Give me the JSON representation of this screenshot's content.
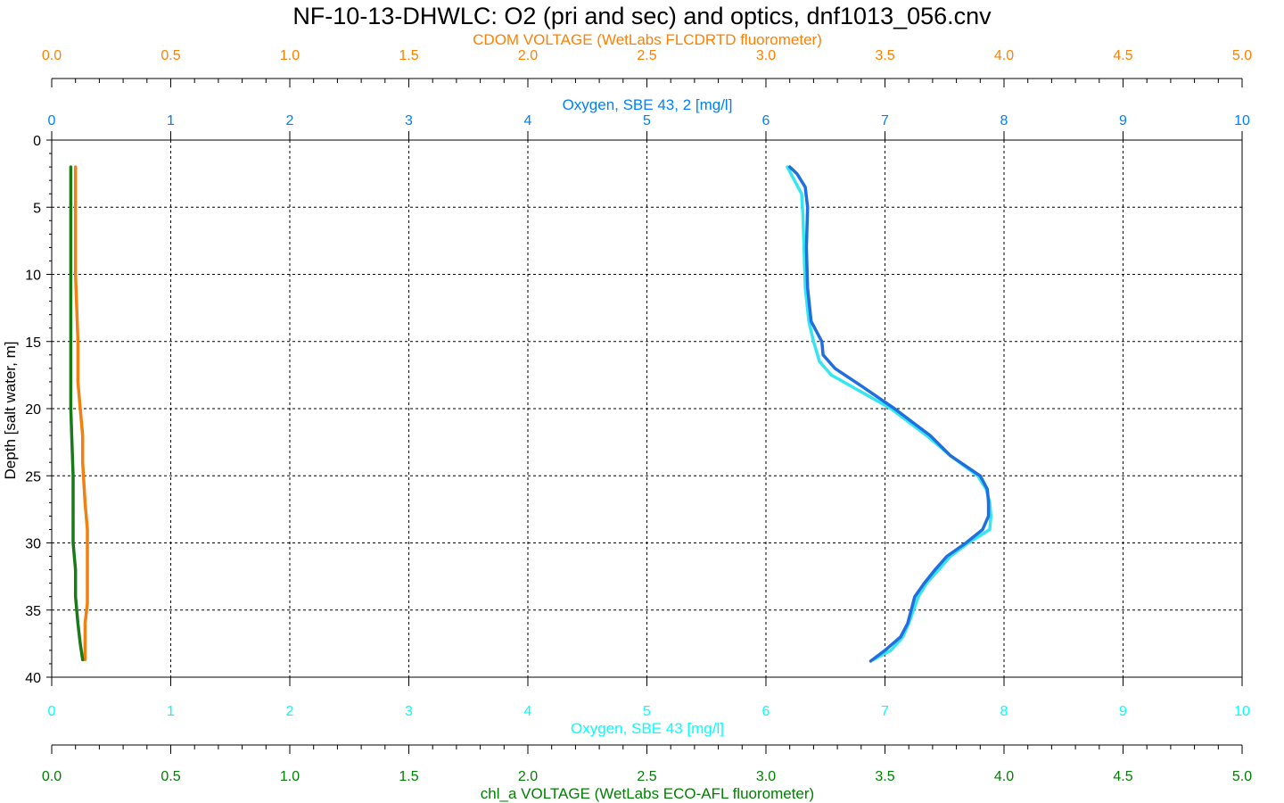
{
  "chart_data": {
    "type": "line",
    "title": "NF-10-13-DHWLC: O2 (pri and sec) and optics, dnf1013_056.cnv",
    "ylabel": "Depth [salt water, m]",
    "ylim": [
      0,
      40
    ],
    "y_inverted": true,
    "y_ticks": [
      "0",
      "5",
      "10",
      "15",
      "20",
      "25",
      "30",
      "35",
      "40"
    ],
    "grid": true,
    "axes": {
      "cdom": {
        "label": "CDOM VOLTAGE (WetLabs FLCDRTD fluorometer)",
        "position": "top-outer",
        "range": [
          0,
          5
        ],
        "ticks": [
          "0.0",
          "0.5",
          "1.0",
          "1.5",
          "2.0",
          "2.5",
          "3.0",
          "3.5",
          "4.0",
          "4.5",
          "5.0"
        ],
        "color": "#ff8000"
      },
      "oxy2": {
        "label": "Oxygen, SBE 43, 2 [mg/l]",
        "position": "top-inner",
        "range": [
          0,
          10
        ],
        "ticks": [
          "0",
          "1",
          "2",
          "3",
          "4",
          "5",
          "6",
          "7",
          "8",
          "9",
          "10"
        ],
        "color": "#0080ff"
      },
      "oxy1": {
        "label": "Oxygen, SBE 43 [mg/l]",
        "position": "bottom-inner",
        "range": [
          0,
          10
        ],
        "ticks": [
          "0",
          "1",
          "2",
          "3",
          "4",
          "5",
          "6",
          "7",
          "8",
          "9",
          "10"
        ],
        "color": "#00ffff"
      },
      "chl": {
        "label": "chl_a VOLTAGE (WetLabs ECO-AFL fluorometer)",
        "position": "bottom-outer",
        "range": [
          0,
          5
        ],
        "ticks": [
          "0.0",
          "0.5",
          "1.0",
          "1.5",
          "2.0",
          "2.5",
          "3.0",
          "3.5",
          "4.0",
          "4.5",
          "5.0"
        ],
        "color": "#008000"
      }
    },
    "series": [
      {
        "axis": "oxy1",
        "color": "#33e6f0",
        "points": [
          [
            6.18,
            2.0
          ],
          [
            6.24,
            3.0
          ],
          [
            6.3,
            4.0
          ],
          [
            6.31,
            5.5
          ],
          [
            6.32,
            8.0
          ],
          [
            6.33,
            11.0
          ],
          [
            6.36,
            13.5
          ],
          [
            6.4,
            15.0
          ],
          [
            6.45,
            16.5
          ],
          [
            6.55,
            17.5
          ],
          [
            6.75,
            18.5
          ],
          [
            7.05,
            20.0
          ],
          [
            7.35,
            22.0
          ],
          [
            7.55,
            23.5
          ],
          [
            7.78,
            25.0
          ],
          [
            7.85,
            26.0
          ],
          [
            7.88,
            27.0
          ],
          [
            7.89,
            28.0
          ],
          [
            7.88,
            29.0
          ],
          [
            7.7,
            30.0
          ],
          [
            7.55,
            31.0
          ],
          [
            7.45,
            32.0
          ],
          [
            7.35,
            33.0
          ],
          [
            7.28,
            34.0
          ],
          [
            7.24,
            35.0
          ],
          [
            7.2,
            36.0
          ],
          [
            7.15,
            37.0
          ],
          [
            7.05,
            38.0
          ],
          [
            6.9,
            38.7
          ]
        ]
      },
      {
        "axis": "oxy2",
        "color": "#1f6fe0",
        "points": [
          [
            6.2,
            2.0
          ],
          [
            6.26,
            2.5
          ],
          [
            6.33,
            3.5
          ],
          [
            6.35,
            5.0
          ],
          [
            6.34,
            8.0
          ],
          [
            6.35,
            11.0
          ],
          [
            6.38,
            13.5
          ],
          [
            6.47,
            15.0
          ],
          [
            6.48,
            16.0
          ],
          [
            6.58,
            17.0
          ],
          [
            6.8,
            18.3
          ],
          [
            7.08,
            20.0
          ],
          [
            7.38,
            22.0
          ],
          [
            7.55,
            23.5
          ],
          [
            7.8,
            25.0
          ],
          [
            7.86,
            26.0
          ],
          [
            7.87,
            27.0
          ],
          [
            7.87,
            28.0
          ],
          [
            7.82,
            29.0
          ],
          [
            7.68,
            30.0
          ],
          [
            7.52,
            31.0
          ],
          [
            7.42,
            32.0
          ],
          [
            7.33,
            33.0
          ],
          [
            7.25,
            34.0
          ],
          [
            7.22,
            35.0
          ],
          [
            7.19,
            36.0
          ],
          [
            7.13,
            37.0
          ],
          [
            7.0,
            38.0
          ],
          [
            6.88,
            38.8
          ]
        ]
      },
      {
        "axis": "cdom",
        "color": "#f08010",
        "points": [
          [
            0.1,
            2.0
          ],
          [
            0.1,
            5.0
          ],
          [
            0.1,
            10.0
          ],
          [
            0.11,
            15.0
          ],
          [
            0.11,
            18.0
          ],
          [
            0.12,
            20.0
          ],
          [
            0.13,
            22.0
          ],
          [
            0.13,
            24.0
          ],
          [
            0.14,
            27.0
          ],
          [
            0.15,
            29.0
          ],
          [
            0.15,
            31.0
          ],
          [
            0.15,
            33.0
          ],
          [
            0.15,
            34.5
          ],
          [
            0.14,
            36.0
          ],
          [
            0.14,
            37.5
          ],
          [
            0.14,
            38.7
          ]
        ]
      },
      {
        "axis": "chl",
        "color": "#1a7a1a",
        "points": [
          [
            0.08,
            2.0
          ],
          [
            0.08,
            5.0
          ],
          [
            0.08,
            10.0
          ],
          [
            0.08,
            15.0
          ],
          [
            0.08,
            20.0
          ],
          [
            0.09,
            25.0
          ],
          [
            0.09,
            28.0
          ],
          [
            0.09,
            30.0
          ],
          [
            0.1,
            32.0
          ],
          [
            0.1,
            34.0
          ],
          [
            0.11,
            36.0
          ],
          [
            0.12,
            37.5
          ],
          [
            0.13,
            38.7
          ]
        ]
      }
    ]
  }
}
